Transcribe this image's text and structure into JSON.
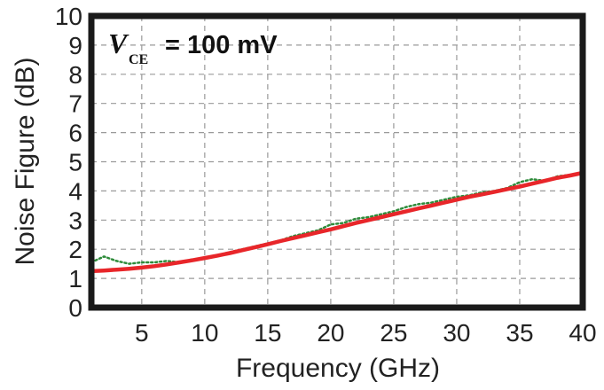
{
  "chart_data": {
    "type": "line",
    "title": "",
    "xlabel": "Frequency (GHz)",
    "ylabel": "Noise Figure (dB)",
    "xlim": [
      1,
      40
    ],
    "ylim": [
      0,
      10
    ],
    "x_ticks": [
      5,
      10,
      15,
      20,
      25,
      30,
      35,
      40
    ],
    "y_ticks": [
      0,
      1,
      2,
      3,
      4,
      5,
      6,
      7,
      8,
      9,
      10
    ],
    "x_tick_labels": [
      "5",
      "10",
      "15",
      "20",
      "25",
      "30",
      "35",
      "40"
    ],
    "y_tick_labels": [
      "0",
      "1",
      "2",
      "3",
      "4",
      "5",
      "6",
      "7",
      "8",
      "9",
      "10"
    ],
    "grid": true,
    "annotation": {
      "symbol": "V",
      "subscript": "CE",
      "text": "= 100 mV"
    },
    "series": [
      {
        "style": "dotted",
        "color": "#2e8b3a",
        "x": [
          1,
          2,
          3,
          4,
          5,
          6,
          7,
          8,
          9,
          10,
          11,
          12,
          13,
          14,
          15,
          16,
          17,
          18,
          19,
          20,
          21,
          22,
          23,
          24,
          25,
          26,
          27,
          28,
          29,
          30,
          31,
          32,
          33,
          34,
          35,
          36,
          37,
          38,
          39,
          40
        ],
        "y": [
          1.55,
          1.75,
          1.6,
          1.5,
          1.55,
          1.55,
          1.6,
          1.55,
          1.65,
          1.7,
          1.8,
          1.9,
          2.0,
          2.1,
          2.2,
          2.3,
          2.45,
          2.55,
          2.65,
          2.85,
          2.9,
          3.05,
          3.1,
          3.2,
          3.3,
          3.45,
          3.55,
          3.6,
          3.7,
          3.8,
          3.85,
          3.95,
          4.0,
          4.1,
          4.3,
          4.4,
          4.35,
          4.5,
          4.55,
          4.6
        ]
      },
      {
        "style": "solid",
        "color": "#e8262a",
        "x": [
          1,
          2,
          3,
          4,
          5,
          6,
          7,
          8,
          9,
          10,
          11,
          12,
          13,
          14,
          15,
          16,
          17,
          18,
          19,
          20,
          21,
          22,
          23,
          24,
          25,
          26,
          27,
          28,
          29,
          30,
          31,
          32,
          33,
          34,
          35,
          36,
          37,
          38,
          39,
          40
        ],
        "y": [
          1.25,
          1.27,
          1.3,
          1.33,
          1.37,
          1.42,
          1.48,
          1.55,
          1.62,
          1.7,
          1.78,
          1.87,
          1.97,
          2.07,
          2.17,
          2.28,
          2.38,
          2.48,
          2.58,
          2.68,
          2.79,
          2.9,
          3.0,
          3.1,
          3.2,
          3.3,
          3.4,
          3.5,
          3.6,
          3.7,
          3.8,
          3.88,
          3.97,
          4.06,
          4.15,
          4.25,
          4.35,
          4.45,
          4.53,
          4.62
        ]
      }
    ]
  }
}
